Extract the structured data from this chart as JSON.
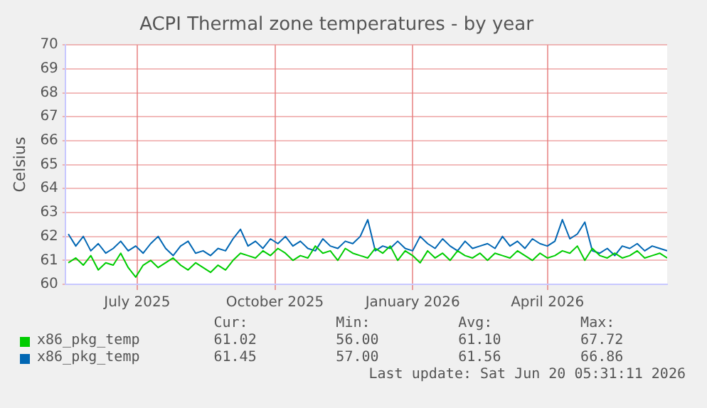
{
  "chart_data": {
    "type": "line",
    "title": "ACPI Thermal zone temperatures - by year",
    "ylabel": "Celsius",
    "x": [
      "2025-05-16",
      "2025-05-21",
      "2025-05-26",
      "2025-05-31",
      "2025-06-05",
      "2025-06-10",
      "2025-06-15",
      "2025-06-20",
      "2025-06-25",
      "2025-06-30",
      "2025-07-05",
      "2025-07-10",
      "2025-07-15",
      "2025-07-20",
      "2025-07-25",
      "2025-07-30",
      "2025-08-04",
      "2025-08-09",
      "2025-08-14",
      "2025-08-19",
      "2025-08-24",
      "2025-08-29",
      "2025-09-03",
      "2025-09-08",
      "2025-09-13",
      "2025-09-18",
      "2025-09-23",
      "2025-09-28",
      "2025-10-03",
      "2025-10-08",
      "2025-10-13",
      "2025-10-18",
      "2025-10-23",
      "2025-10-28",
      "2025-11-02",
      "2025-11-07",
      "2025-11-12",
      "2025-11-17",
      "2025-11-22",
      "2025-11-27",
      "2025-12-02",
      "2025-12-07",
      "2025-12-12",
      "2025-12-17",
      "2025-12-22",
      "2025-12-27",
      "2026-01-01",
      "2026-01-06",
      "2026-01-11",
      "2026-01-16",
      "2026-01-21",
      "2026-01-26",
      "2026-01-31",
      "2026-02-05",
      "2026-02-10",
      "2026-02-15",
      "2026-02-20",
      "2026-02-25",
      "2026-03-02",
      "2026-03-07",
      "2026-03-12",
      "2026-03-17",
      "2026-03-22",
      "2026-03-27",
      "2026-04-01",
      "2026-04-06",
      "2026-04-11",
      "2026-04-16",
      "2026-04-21",
      "2026-04-26",
      "2026-05-01",
      "2026-05-06",
      "2026-05-11",
      "2026-05-16",
      "2026-05-21",
      "2026-05-26",
      "2026-05-31",
      "2026-06-05",
      "2026-06-10",
      "2026-06-15",
      "2026-06-20"
    ],
    "series": [
      {
        "name": "x86_pkg_temp",
        "color": "#00cc00",
        "values": [
          60.9,
          61.1,
          60.8,
          61.2,
          60.6,
          60.9,
          60.8,
          61.3,
          60.7,
          60.3,
          60.8,
          61.0,
          60.7,
          60.9,
          61.1,
          60.8,
          60.6,
          60.9,
          60.7,
          60.5,
          60.8,
          60.6,
          61.0,
          61.3,
          61.2,
          61.1,
          61.4,
          61.2,
          61.5,
          61.3,
          61.0,
          61.2,
          61.1,
          61.6,
          61.3,
          61.4,
          61.0,
          61.5,
          61.3,
          61.2,
          61.1,
          61.5,
          61.3,
          61.6,
          61.0,
          61.4,
          61.2,
          60.9,
          61.4,
          61.1,
          61.3,
          61.0,
          61.4,
          61.2,
          61.1,
          61.3,
          61.0,
          61.3,
          61.2,
          61.1,
          61.4,
          61.2,
          61.0,
          61.3,
          61.1,
          61.2,
          61.4,
          61.3,
          61.6,
          61.0,
          61.5,
          61.2,
          61.1,
          61.3,
          61.1,
          61.2,
          61.4,
          61.1,
          61.2,
          61.3,
          61.1
        ]
      },
      {
        "name": "x86_pkg_temp",
        "color": "#0066b3",
        "values": [
          62.1,
          61.6,
          62.0,
          61.4,
          61.7,
          61.3,
          61.5,
          61.8,
          61.4,
          61.6,
          61.3,
          61.7,
          62.0,
          61.5,
          61.2,
          61.6,
          61.8,
          61.3,
          61.4,
          61.2,
          61.5,
          61.4,
          61.9,
          62.3,
          61.6,
          61.8,
          61.5,
          61.9,
          61.7,
          62.0,
          61.6,
          61.8,
          61.5,
          61.4,
          61.9,
          61.6,
          61.5,
          61.8,
          61.7,
          62.0,
          62.7,
          61.4,
          61.6,
          61.5,
          61.8,
          61.5,
          61.4,
          62.0,
          61.7,
          61.5,
          61.9,
          61.6,
          61.4,
          61.8,
          61.5,
          61.6,
          61.7,
          61.5,
          62.0,
          61.6,
          61.8,
          61.5,
          61.9,
          61.7,
          61.6,
          61.8,
          62.7,
          61.9,
          62.1,
          62.6,
          61.4,
          61.3,
          61.5,
          61.2,
          61.6,
          61.5,
          61.7,
          61.4,
          61.6,
          61.5,
          61.4
        ]
      }
    ],
    "xlim": [
      "2025-05-14",
      "2026-06-20"
    ],
    "xticks": [
      {
        "value": "2025-07-01",
        "label": "July 2025"
      },
      {
        "value": "2025-10-01",
        "label": "October 2025"
      },
      {
        "value": "2026-01-01",
        "label": "January 2026"
      },
      {
        "value": "2026-04-01",
        "label": "April 2026"
      }
    ],
    "ylim": [
      60,
      70
    ],
    "yticks": [
      60,
      61,
      62,
      63,
      64,
      65,
      66,
      67,
      68,
      69,
      70
    ],
    "grid": true,
    "legend": "bottom",
    "marker": "none",
    "line_style": "solid",
    "annotations": [
      "Cur:",
      "Min:",
      "Avg:",
      "Max:",
      "61.02",
      "56.00",
      "61.10",
      "67.72",
      "61.45",
      "57.00",
      "61.56",
      "66.86",
      "Last update: Sat Jun 20 05:31:11 2026"
    ]
  }
}
